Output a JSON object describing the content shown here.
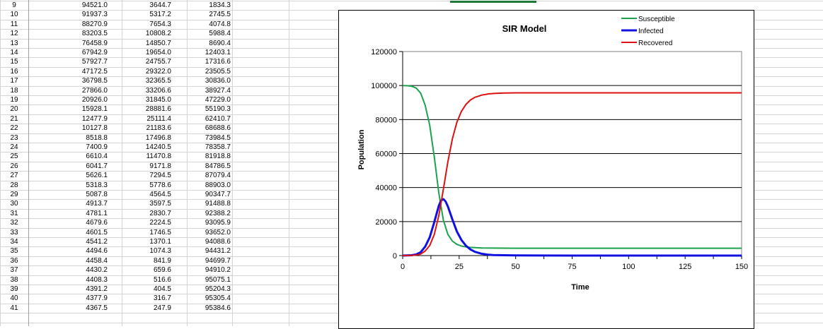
{
  "spreadsheet": {
    "rows": [
      {
        "row": "9",
        "s": "94521.0",
        "i": "3644.7",
        "r": "1834.3"
      },
      {
        "row": "10",
        "s": "91937.3",
        "i": "5317.2",
        "r": "2745.5"
      },
      {
        "row": "11",
        "s": "88270.9",
        "i": "7654.3",
        "r": "4074.8"
      },
      {
        "row": "12",
        "s": "83203.5",
        "i": "10808.2",
        "r": "5988.4"
      },
      {
        "row": "13",
        "s": "76458.9",
        "i": "14850.7",
        "r": "8690.4"
      },
      {
        "row": "14",
        "s": "67942.9",
        "i": "19654.0",
        "r": "12403.1"
      },
      {
        "row": "15",
        "s": "57927.7",
        "i": "24755.7",
        "r": "17316.6"
      },
      {
        "row": "16",
        "s": "47172.5",
        "i": "29322.0",
        "r": "23505.5"
      },
      {
        "row": "17",
        "s": "36798.5",
        "i": "32365.5",
        "r": "30836.0"
      },
      {
        "row": "18",
        "s": "27866.0",
        "i": "33206.6",
        "r": "38927.4"
      },
      {
        "row": "19",
        "s": "20926.0",
        "i": "31845.0",
        "r": "47229.0"
      },
      {
        "row": "20",
        "s": "15928.1",
        "i": "28881.6",
        "r": "55190.3"
      },
      {
        "row": "21",
        "s": "12477.9",
        "i": "25111.4",
        "r": "62410.7"
      },
      {
        "row": "22",
        "s": "10127.8",
        "i": "21183.6",
        "r": "68688.6"
      },
      {
        "row": "23",
        "s": "8518.8",
        "i": "17496.8",
        "r": "73984.5"
      },
      {
        "row": "24",
        "s": "7400.9",
        "i": "14240.5",
        "r": "78358.7"
      },
      {
        "row": "25",
        "s": "6610.4",
        "i": "11470.8",
        "r": "81918.8"
      },
      {
        "row": "26",
        "s": "6041.7",
        "i": "9171.8",
        "r": "84786.5"
      },
      {
        "row": "27",
        "s": "5626.1",
        "i": "7294.5",
        "r": "87079.4"
      },
      {
        "row": "28",
        "s": "5318.3",
        "i": "5778.6",
        "r": "88903.0"
      },
      {
        "row": "29",
        "s": "5087.8",
        "i": "4564.5",
        "r": "90347.7"
      },
      {
        "row": "30",
        "s": "4913.7",
        "i": "3597.5",
        "r": "91488.8"
      },
      {
        "row": "31",
        "s": "4781.1",
        "i": "2830.7",
        "r": "92388.2"
      },
      {
        "row": "32",
        "s": "4679.6",
        "i": "2224.5",
        "r": "93095.9"
      },
      {
        "row": "33",
        "s": "4601.5",
        "i": "1746.5",
        "r": "93652.0"
      },
      {
        "row": "34",
        "s": "4541.2",
        "i": "1370.1",
        "r": "94088.6"
      },
      {
        "row": "35",
        "s": "4494.6",
        "i": "1074.3",
        "r": "94431.2"
      },
      {
        "row": "36",
        "s": "4458.4",
        "i": "841.9",
        "r": "94699.7"
      },
      {
        "row": "37",
        "s": "4430.2",
        "i": "659.6",
        "r": "94910.2"
      },
      {
        "row": "38",
        "s": "4408.3",
        "i": "516.6",
        "r": "95075.1"
      },
      {
        "row": "39",
        "s": "4391.2",
        "i": "404.5",
        "r": "95204.3"
      },
      {
        "row": "40",
        "s": "4377.9",
        "i": "316.7",
        "r": "95305.4"
      },
      {
        "row": "41",
        "s": "4367.5",
        "i": "247.9",
        "r": "95384.6"
      }
    ]
  },
  "chart_data": {
    "type": "line",
    "title": "SIR Model",
    "xlabel": "Time",
    "ylabel": "Population",
    "xlim": [
      0,
      150
    ],
    "ylim": [
      0,
      120000
    ],
    "x_ticks": [
      "0",
      "25",
      "50",
      "75",
      "100",
      "125",
      "150"
    ],
    "y_ticks": [
      "0",
      "20000",
      "40000",
      "60000",
      "80000",
      "100000",
      "120000"
    ],
    "grid": "horizontal major gridlines",
    "legend": "top-right",
    "series": [
      {
        "name": "Susceptible",
        "color": "#1aa34a",
        "x": [
          0,
          2,
          4,
          6,
          8,
          10,
          12,
          14,
          16,
          18,
          20,
          22,
          24,
          26,
          28,
          30,
          35,
          40,
          50,
          75,
          100,
          125,
          150
        ],
        "y": [
          100000,
          99900,
          99600,
          98500,
          95500,
          88300,
          76500,
          58000,
          36800,
          20900,
          12500,
          8500,
          6600,
          5600,
          5100,
          4800,
          4500,
          4400,
          4320,
          4320,
          4320,
          4320,
          4320
        ]
      },
      {
        "name": "Infected",
        "color": "#1010e0",
        "x": [
          0,
          2,
          4,
          6,
          8,
          10,
          12,
          14,
          16,
          17,
          18,
          19,
          20,
          22,
          24,
          26,
          28,
          30,
          32,
          35,
          38,
          40,
          50,
          75,
          100,
          125,
          150
        ],
        "y": [
          0,
          70,
          200,
          700,
          2000,
          5300,
          10800,
          19700,
          29300,
          32400,
          33200,
          31800,
          28900,
          21200,
          14200,
          9200,
          5800,
          3600,
          2200,
          1100,
          500,
          300,
          80,
          0,
          0,
          0,
          0
        ]
      },
      {
        "name": "Recovered",
        "color": "#dd1111",
        "x": [
          0,
          2,
          4,
          6,
          8,
          10,
          12,
          14,
          16,
          18,
          20,
          22,
          24,
          26,
          28,
          30,
          32,
          35,
          38,
          41,
          45,
          50,
          75,
          100,
          125,
          150
        ],
        "y": [
          0,
          40,
          100,
          300,
          900,
          2700,
          6000,
          12400,
          23500,
          38900,
          55200,
          68700,
          78400,
          84800,
          88900,
          91500,
          93100,
          94400,
          95100,
          95400,
          95600,
          95700,
          95700,
          95700,
          95700,
          95700
        ]
      }
    ]
  }
}
